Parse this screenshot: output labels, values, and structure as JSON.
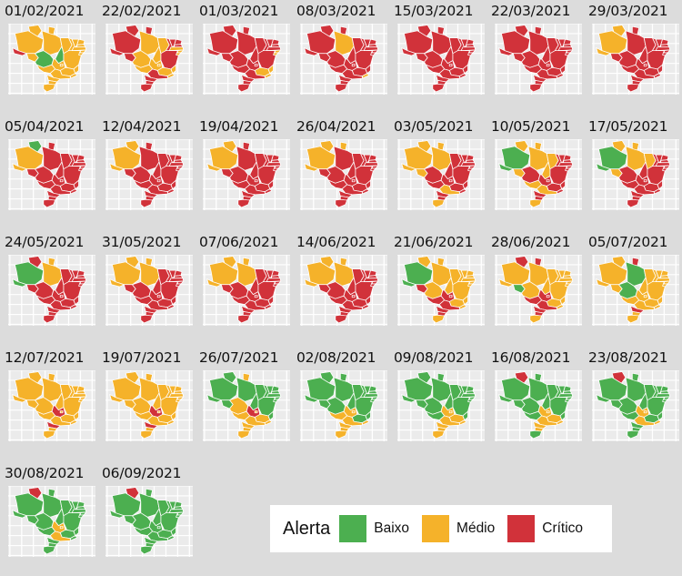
{
  "colors": {
    "Baixo": "#4caf50",
    "Médio": "#f5b22a",
    "Crítico": "#d1323a"
  },
  "legend": {
    "title": "Alerta",
    "items": [
      {
        "level": "Baixo",
        "label": "Baixo"
      },
      {
        "level": "Médio",
        "label": "Médio"
      },
      {
        "level": "Crítico",
        "label": "Crítico"
      }
    ]
  },
  "panels": [
    {
      "date": "01/02/2021",
      "status": {
        "AC": "C",
        "AM": "M",
        "RR": "M",
        "AP": "M",
        "PA": "M",
        "RO": "M",
        "MT": "B",
        "TO": "B",
        "MA": "M",
        "PI": "M",
        "CE": "M",
        "RN": "M",
        "PB": "M",
        "PE": "M",
        "AL": "M",
        "SE": "M",
        "BA": "M",
        "GO": "M",
        "DF": "M",
        "MS": "M",
        "MG": "M",
        "ES": "M",
        "RJ": "M",
        "SP": "M",
        "PR": "M",
        "SC": "M",
        "RS": "M"
      }
    },
    {
      "date": "22/02/2021",
      "status": {
        "AC": "C",
        "AM": "C",
        "RR": "C",
        "AP": "C",
        "PA": "M",
        "RO": "C",
        "MT": "M",
        "TO": "M",
        "MA": "M",
        "PI": "C",
        "CE": "C",
        "RN": "C",
        "PB": "C",
        "PE": "M",
        "AL": "M",
        "SE": "M",
        "BA": "C",
        "GO": "M",
        "DF": "M",
        "MS": "M",
        "MG": "M",
        "ES": "M",
        "RJ": "M",
        "SP": "C",
        "PR": "C",
        "SC": "C",
        "RS": "C"
      }
    },
    {
      "date": "01/03/2021",
      "status": {
        "AC": "C",
        "AM": "C",
        "RR": "C",
        "AP": "C",
        "PA": "C",
        "RO": "C",
        "MT": "C",
        "TO": "C",
        "MA": "C",
        "PI": "C",
        "CE": "C",
        "RN": "C",
        "PB": "C",
        "PE": "C",
        "AL": "M",
        "SE": "M",
        "BA": "C",
        "GO": "C",
        "DF": "C",
        "MS": "C",
        "MG": "M",
        "ES": "M",
        "RJ": "M",
        "SP": "C",
        "PR": "C",
        "SC": "C",
        "RS": "C"
      }
    },
    {
      "date": "08/03/2021",
      "status": {
        "AC": "C",
        "AM": "C",
        "RR": "C",
        "AP": "C",
        "PA": "M",
        "RO": "C",
        "MT": "C",
        "TO": "C",
        "MA": "C",
        "PI": "C",
        "CE": "C",
        "RN": "C",
        "PB": "C",
        "PE": "C",
        "AL": "C",
        "SE": "C",
        "BA": "C",
        "GO": "C",
        "DF": "C",
        "MS": "C",
        "MG": "C",
        "ES": "C",
        "RJ": "M",
        "SP": "C",
        "PR": "C",
        "SC": "C",
        "RS": "C"
      }
    },
    {
      "date": "15/03/2021",
      "status": {
        "AC": "C",
        "AM": "C",
        "RR": "C",
        "AP": "C",
        "PA": "C",
        "RO": "C",
        "MT": "C",
        "TO": "C",
        "MA": "C",
        "PI": "C",
        "CE": "C",
        "RN": "C",
        "PB": "C",
        "PE": "C",
        "AL": "C",
        "SE": "C",
        "BA": "C",
        "GO": "C",
        "DF": "C",
        "MS": "C",
        "MG": "C",
        "ES": "C",
        "RJ": "C",
        "SP": "C",
        "PR": "C",
        "SC": "C",
        "RS": "C"
      }
    },
    {
      "date": "22/03/2021",
      "status": {
        "AC": "C",
        "AM": "C",
        "RR": "C",
        "AP": "C",
        "PA": "C",
        "RO": "C",
        "MT": "C",
        "TO": "C",
        "MA": "C",
        "PI": "C",
        "CE": "C",
        "RN": "C",
        "PB": "C",
        "PE": "C",
        "AL": "C",
        "SE": "C",
        "BA": "C",
        "GO": "C",
        "DF": "C",
        "MS": "C",
        "MG": "C",
        "ES": "C",
        "RJ": "C",
        "SP": "C",
        "PR": "C",
        "SC": "C",
        "RS": "C"
      }
    },
    {
      "date": "29/03/2021",
      "status": {
        "AC": "M",
        "AM": "M",
        "RR": "M",
        "AP": "C",
        "PA": "C",
        "RO": "C",
        "MT": "C",
        "TO": "C",
        "MA": "C",
        "PI": "C",
        "CE": "C",
        "RN": "C",
        "PB": "C",
        "PE": "C",
        "AL": "C",
        "SE": "C",
        "BA": "C",
        "GO": "C",
        "DF": "C",
        "MS": "C",
        "MG": "C",
        "ES": "C",
        "RJ": "C",
        "SP": "C",
        "PR": "C",
        "SC": "C",
        "RS": "C"
      }
    },
    {
      "date": "05/04/2021",
      "status": {
        "AC": "M",
        "AM": "M",
        "RR": "B",
        "AP": "C",
        "PA": "C",
        "RO": "C",
        "MT": "C",
        "TO": "C",
        "MA": "C",
        "PI": "C",
        "CE": "C",
        "RN": "C",
        "PB": "C",
        "PE": "C",
        "AL": "C",
        "SE": "C",
        "BA": "C",
        "GO": "C",
        "DF": "C",
        "MS": "C",
        "MG": "C",
        "ES": "C",
        "RJ": "C",
        "SP": "C",
        "PR": "C",
        "SC": "C",
        "RS": "C"
      }
    },
    {
      "date": "12/04/2021",
      "status": {
        "AC": "M",
        "AM": "M",
        "RR": "M",
        "AP": "C",
        "PA": "C",
        "RO": "C",
        "MT": "C",
        "TO": "C",
        "MA": "C",
        "PI": "C",
        "CE": "C",
        "RN": "C",
        "PB": "C",
        "PE": "C",
        "AL": "C",
        "SE": "C",
        "BA": "C",
        "GO": "C",
        "DF": "C",
        "MS": "C",
        "MG": "C",
        "ES": "C",
        "RJ": "C",
        "SP": "C",
        "PR": "C",
        "SC": "C",
        "RS": "C"
      }
    },
    {
      "date": "19/04/2021",
      "status": {
        "AC": "M",
        "AM": "M",
        "RR": "M",
        "AP": "C",
        "PA": "C",
        "RO": "C",
        "MT": "C",
        "TO": "C",
        "MA": "C",
        "PI": "C",
        "CE": "C",
        "RN": "C",
        "PB": "C",
        "PE": "C",
        "AL": "C",
        "SE": "C",
        "BA": "C",
        "GO": "C",
        "DF": "C",
        "MS": "C",
        "MG": "C",
        "ES": "C",
        "RJ": "C",
        "SP": "C",
        "PR": "C",
        "SC": "C",
        "RS": "C"
      }
    },
    {
      "date": "26/04/2021",
      "status": {
        "AC": "M",
        "AM": "M",
        "RR": "M",
        "AP": "M",
        "PA": "C",
        "RO": "C",
        "MT": "C",
        "TO": "C",
        "MA": "C",
        "PI": "C",
        "CE": "C",
        "RN": "C",
        "PB": "C",
        "PE": "C",
        "AL": "C",
        "SE": "C",
        "BA": "C",
        "GO": "C",
        "DF": "C",
        "MS": "C",
        "MG": "C",
        "ES": "C",
        "RJ": "C",
        "SP": "C",
        "PR": "C",
        "SC": "C",
        "RS": "C"
      }
    },
    {
      "date": "03/05/2021",
      "status": {
        "AC": "M",
        "AM": "M",
        "RR": "M",
        "AP": "M",
        "PA": "M",
        "RO": "M",
        "MT": "C",
        "TO": "C",
        "MA": "C",
        "PI": "C",
        "CE": "C",
        "RN": "C",
        "PB": "C",
        "PE": "C",
        "AL": "C",
        "SE": "C",
        "BA": "C",
        "GO": "C",
        "DF": "C",
        "MS": "C",
        "MG": "C",
        "ES": "C",
        "RJ": "C",
        "SP": "M",
        "PR": "C",
        "SC": "C",
        "RS": "M"
      }
    },
    {
      "date": "10/05/2021",
      "status": {
        "AC": "B",
        "AM": "B",
        "RR": "M",
        "AP": "M",
        "PA": "M",
        "RO": "M",
        "MT": "C",
        "TO": "M",
        "MA": "M",
        "PI": "C",
        "CE": "C",
        "RN": "C",
        "PB": "C",
        "PE": "C",
        "AL": "C",
        "SE": "C",
        "BA": "C",
        "GO": "C",
        "DF": "C",
        "MS": "M",
        "MG": "C",
        "ES": "C",
        "RJ": "C",
        "SP": "M",
        "PR": "C",
        "SC": "C",
        "RS": "M"
      }
    },
    {
      "date": "17/05/2021",
      "status": {
        "AC": "B",
        "AM": "B",
        "RR": "M",
        "AP": "M",
        "PA": "M",
        "RO": "M",
        "MT": "C",
        "TO": "C",
        "MA": "M",
        "PI": "C",
        "CE": "C",
        "RN": "C",
        "PB": "C",
        "PE": "C",
        "AL": "C",
        "SE": "C",
        "BA": "C",
        "GO": "C",
        "DF": "C",
        "MS": "C",
        "MG": "C",
        "ES": "C",
        "RJ": "C",
        "SP": "C",
        "PR": "C",
        "SC": "C",
        "RS": "C"
      }
    },
    {
      "date": "24/05/2021",
      "status": {
        "AC": "B",
        "AM": "B",
        "RR": "C",
        "AP": "M",
        "PA": "M",
        "RO": "C",
        "MT": "C",
        "TO": "C",
        "MA": "C",
        "PI": "C",
        "CE": "C",
        "RN": "C",
        "PB": "C",
        "PE": "C",
        "AL": "C",
        "SE": "C",
        "BA": "C",
        "GO": "C",
        "DF": "C",
        "MS": "C",
        "MG": "C",
        "ES": "C",
        "RJ": "C",
        "SP": "C",
        "PR": "C",
        "SC": "C",
        "RS": "C"
      }
    },
    {
      "date": "31/05/2021",
      "status": {
        "AC": "M",
        "AM": "M",
        "RR": "M",
        "AP": "M",
        "PA": "M",
        "RO": "C",
        "MT": "C",
        "TO": "C",
        "MA": "C",
        "PI": "C",
        "CE": "C",
        "RN": "C",
        "PB": "C",
        "PE": "C",
        "AL": "C",
        "SE": "C",
        "BA": "C",
        "GO": "C",
        "DF": "C",
        "MS": "C",
        "MG": "C",
        "ES": "C",
        "RJ": "C",
        "SP": "C",
        "PR": "C",
        "SC": "C",
        "RS": "C"
      }
    },
    {
      "date": "07/06/2021",
      "status": {
        "AC": "M",
        "AM": "M",
        "RR": "M",
        "AP": "M",
        "PA": "M",
        "RO": "C",
        "MT": "C",
        "TO": "C",
        "MA": "C",
        "PI": "C",
        "CE": "C",
        "RN": "C",
        "PB": "C",
        "PE": "C",
        "AL": "C",
        "SE": "C",
        "BA": "C",
        "GO": "C",
        "DF": "C",
        "MS": "C",
        "MG": "C",
        "ES": "C",
        "RJ": "C",
        "SP": "C",
        "PR": "C",
        "SC": "C",
        "RS": "C"
      }
    },
    {
      "date": "14/06/2021",
      "status": {
        "AC": "M",
        "AM": "M",
        "RR": "M",
        "AP": "M",
        "PA": "M",
        "RO": "C",
        "MT": "C",
        "TO": "C",
        "MA": "C",
        "PI": "C",
        "CE": "C",
        "RN": "C",
        "PB": "C",
        "PE": "C",
        "AL": "C",
        "SE": "C",
        "BA": "C",
        "GO": "C",
        "DF": "C",
        "MS": "C",
        "MG": "C",
        "ES": "C",
        "RJ": "C",
        "SP": "C",
        "PR": "C",
        "SC": "C",
        "RS": "C"
      }
    },
    {
      "date": "21/06/2021",
      "status": {
        "AC": "B",
        "AM": "B",
        "RR": "M",
        "AP": "M",
        "PA": "M",
        "RO": "C",
        "MT": "M",
        "TO": "M",
        "MA": "M",
        "PI": "M",
        "CE": "M",
        "RN": "M",
        "PB": "M",
        "PE": "M",
        "AL": "M",
        "SE": "M",
        "BA": "M",
        "GO": "C",
        "DF": "C",
        "MS": "C",
        "MG": "M",
        "ES": "M",
        "RJ": "M",
        "SP": "C",
        "PR": "C",
        "SC": "C",
        "RS": "M"
      }
    },
    {
      "date": "28/06/2021",
      "status": {
        "AC": "M",
        "AM": "M",
        "RR": "C",
        "AP": "C",
        "PA": "M",
        "RO": "B",
        "MT": "M",
        "TO": "M",
        "MA": "M",
        "PI": "M",
        "CE": "M",
        "RN": "M",
        "PB": "M",
        "PE": "M",
        "AL": "M",
        "SE": "M",
        "BA": "M",
        "GO": "C",
        "DF": "C",
        "MS": "C",
        "MG": "M",
        "ES": "M",
        "RJ": "M",
        "SP": "C",
        "PR": "C",
        "SC": "C",
        "RS": "M"
      }
    },
    {
      "date": "05/07/2021",
      "status": {
        "AC": "M",
        "AM": "M",
        "RR": "M",
        "AP": "C",
        "PA": "B",
        "RO": "M",
        "MT": "B",
        "TO": "M",
        "MA": "M",
        "PI": "M",
        "CE": "M",
        "RN": "M",
        "PB": "M",
        "PE": "M",
        "AL": "M",
        "SE": "M",
        "BA": "M",
        "GO": "M",
        "DF": "M",
        "MS": "M",
        "MG": "M",
        "ES": "M",
        "RJ": "M",
        "SP": "M",
        "PR": "C",
        "SC": "M",
        "RS": "M"
      }
    },
    {
      "date": "12/07/2021",
      "status": {
        "AC": "M",
        "AM": "M",
        "RR": "M",
        "AP": "M",
        "PA": "M",
        "RO": "M",
        "MT": "M",
        "TO": "M",
        "MA": "M",
        "PI": "M",
        "CE": "M",
        "RN": "M",
        "PB": "M",
        "PE": "M",
        "AL": "M",
        "SE": "M",
        "BA": "M",
        "GO": "C",
        "DF": "M",
        "MS": "M",
        "MG": "M",
        "ES": "M",
        "RJ": "M",
        "SP": "M",
        "PR": "C",
        "SC": "M",
        "RS": "M"
      }
    },
    {
      "date": "19/07/2021",
      "status": {
        "AC": "M",
        "AM": "M",
        "RR": "M",
        "AP": "M",
        "PA": "M",
        "RO": "M",
        "MT": "M",
        "TO": "M",
        "MA": "M",
        "PI": "M",
        "CE": "M",
        "RN": "M",
        "PB": "M",
        "PE": "M",
        "AL": "M",
        "SE": "M",
        "BA": "M",
        "GO": "C",
        "DF": "M",
        "MS": "M",
        "MG": "M",
        "ES": "M",
        "RJ": "M",
        "SP": "M",
        "PR": "C",
        "SC": "M",
        "RS": "M"
      }
    },
    {
      "date": "26/07/2021",
      "status": {
        "AC": "B",
        "AM": "B",
        "RR": "B",
        "AP": "M",
        "PA": "B",
        "RO": "B",
        "MT": "M",
        "TO": "B",
        "MA": "B",
        "PI": "B",
        "CE": "B",
        "RN": "B",
        "PB": "B",
        "PE": "B",
        "AL": "B",
        "SE": "B",
        "BA": "B",
        "GO": "C",
        "DF": "M",
        "MS": "M",
        "MG": "M",
        "ES": "B",
        "RJ": "M",
        "SP": "M",
        "PR": "M",
        "SC": "M",
        "RS": "M"
      }
    },
    {
      "date": "02/08/2021",
      "status": {
        "AC": "B",
        "AM": "B",
        "RR": "B",
        "AP": "B",
        "PA": "B",
        "RO": "B",
        "MT": "B",
        "TO": "B",
        "MA": "B",
        "PI": "B",
        "CE": "B",
        "RN": "B",
        "PB": "B",
        "PE": "B",
        "AL": "B",
        "SE": "B",
        "BA": "B",
        "GO": "M",
        "DF": "M",
        "MS": "M",
        "MG": "B",
        "ES": "B",
        "RJ": "M",
        "SP": "M",
        "PR": "M",
        "SC": "M",
        "RS": "M"
      }
    },
    {
      "date": "09/08/2021",
      "status": {
        "AC": "B",
        "AM": "B",
        "RR": "B",
        "AP": "B",
        "PA": "B",
        "RO": "B",
        "MT": "B",
        "TO": "B",
        "MA": "B",
        "PI": "B",
        "CE": "B",
        "RN": "B",
        "PB": "B",
        "PE": "B",
        "AL": "B",
        "SE": "B",
        "BA": "B",
        "GO": "M",
        "DF": "M",
        "MS": "B",
        "MG": "M",
        "ES": "B",
        "RJ": "M",
        "SP": "M",
        "PR": "M",
        "SC": "M",
        "RS": "M"
      }
    },
    {
      "date": "16/08/2021",
      "status": {
        "AC": "B",
        "AM": "B",
        "RR": "C",
        "AP": "B",
        "PA": "B",
        "RO": "B",
        "MT": "B",
        "TO": "B",
        "MA": "B",
        "PI": "B",
        "CE": "B",
        "RN": "B",
        "PB": "B",
        "PE": "B",
        "AL": "B",
        "SE": "B",
        "BA": "B",
        "GO": "M",
        "DF": "M",
        "MS": "B",
        "MG": "M",
        "ES": "B",
        "RJ": "M",
        "SP": "M",
        "PR": "M",
        "SC": "M",
        "RS": "B"
      }
    },
    {
      "date": "23/08/2021",
      "status": {
        "AC": "B",
        "AM": "B",
        "RR": "C",
        "AP": "B",
        "PA": "B",
        "RO": "B",
        "MT": "B",
        "TO": "B",
        "MA": "B",
        "PI": "B",
        "CE": "B",
        "RN": "B",
        "PB": "B",
        "PE": "B",
        "AL": "B",
        "SE": "B",
        "BA": "B",
        "GO": "M",
        "DF": "M",
        "MS": "B",
        "MG": "B",
        "ES": "B",
        "RJ": "M",
        "SP": "M",
        "PR": "B",
        "SC": "B",
        "RS": "B"
      }
    },
    {
      "date": "30/08/2021",
      "status": {
        "AC": "B",
        "AM": "B",
        "RR": "C",
        "AP": "B",
        "PA": "B",
        "RO": "B",
        "MT": "B",
        "TO": "B",
        "MA": "B",
        "PI": "B",
        "CE": "B",
        "RN": "B",
        "PB": "B",
        "PE": "B",
        "AL": "B",
        "SE": "B",
        "BA": "B",
        "GO": "M",
        "DF": "M",
        "MS": "B",
        "MG": "B",
        "ES": "B",
        "RJ": "B",
        "SP": "M",
        "PR": "B",
        "SC": "B",
        "RS": "B"
      }
    },
    {
      "date": "06/09/2021",
      "status": {
        "AC": "B",
        "AM": "B",
        "RR": "C",
        "AP": "B",
        "PA": "B",
        "RO": "B",
        "MT": "B",
        "TO": "B",
        "MA": "B",
        "PI": "B",
        "CE": "B",
        "RN": "B",
        "PB": "B",
        "PE": "B",
        "AL": "B",
        "SE": "B",
        "BA": "B",
        "GO": "B",
        "DF": "B",
        "MS": "B",
        "MG": "B",
        "ES": "B",
        "RJ": "B",
        "SP": "B",
        "PR": "B",
        "SC": "B",
        "RS": "B"
      }
    }
  ]
}
